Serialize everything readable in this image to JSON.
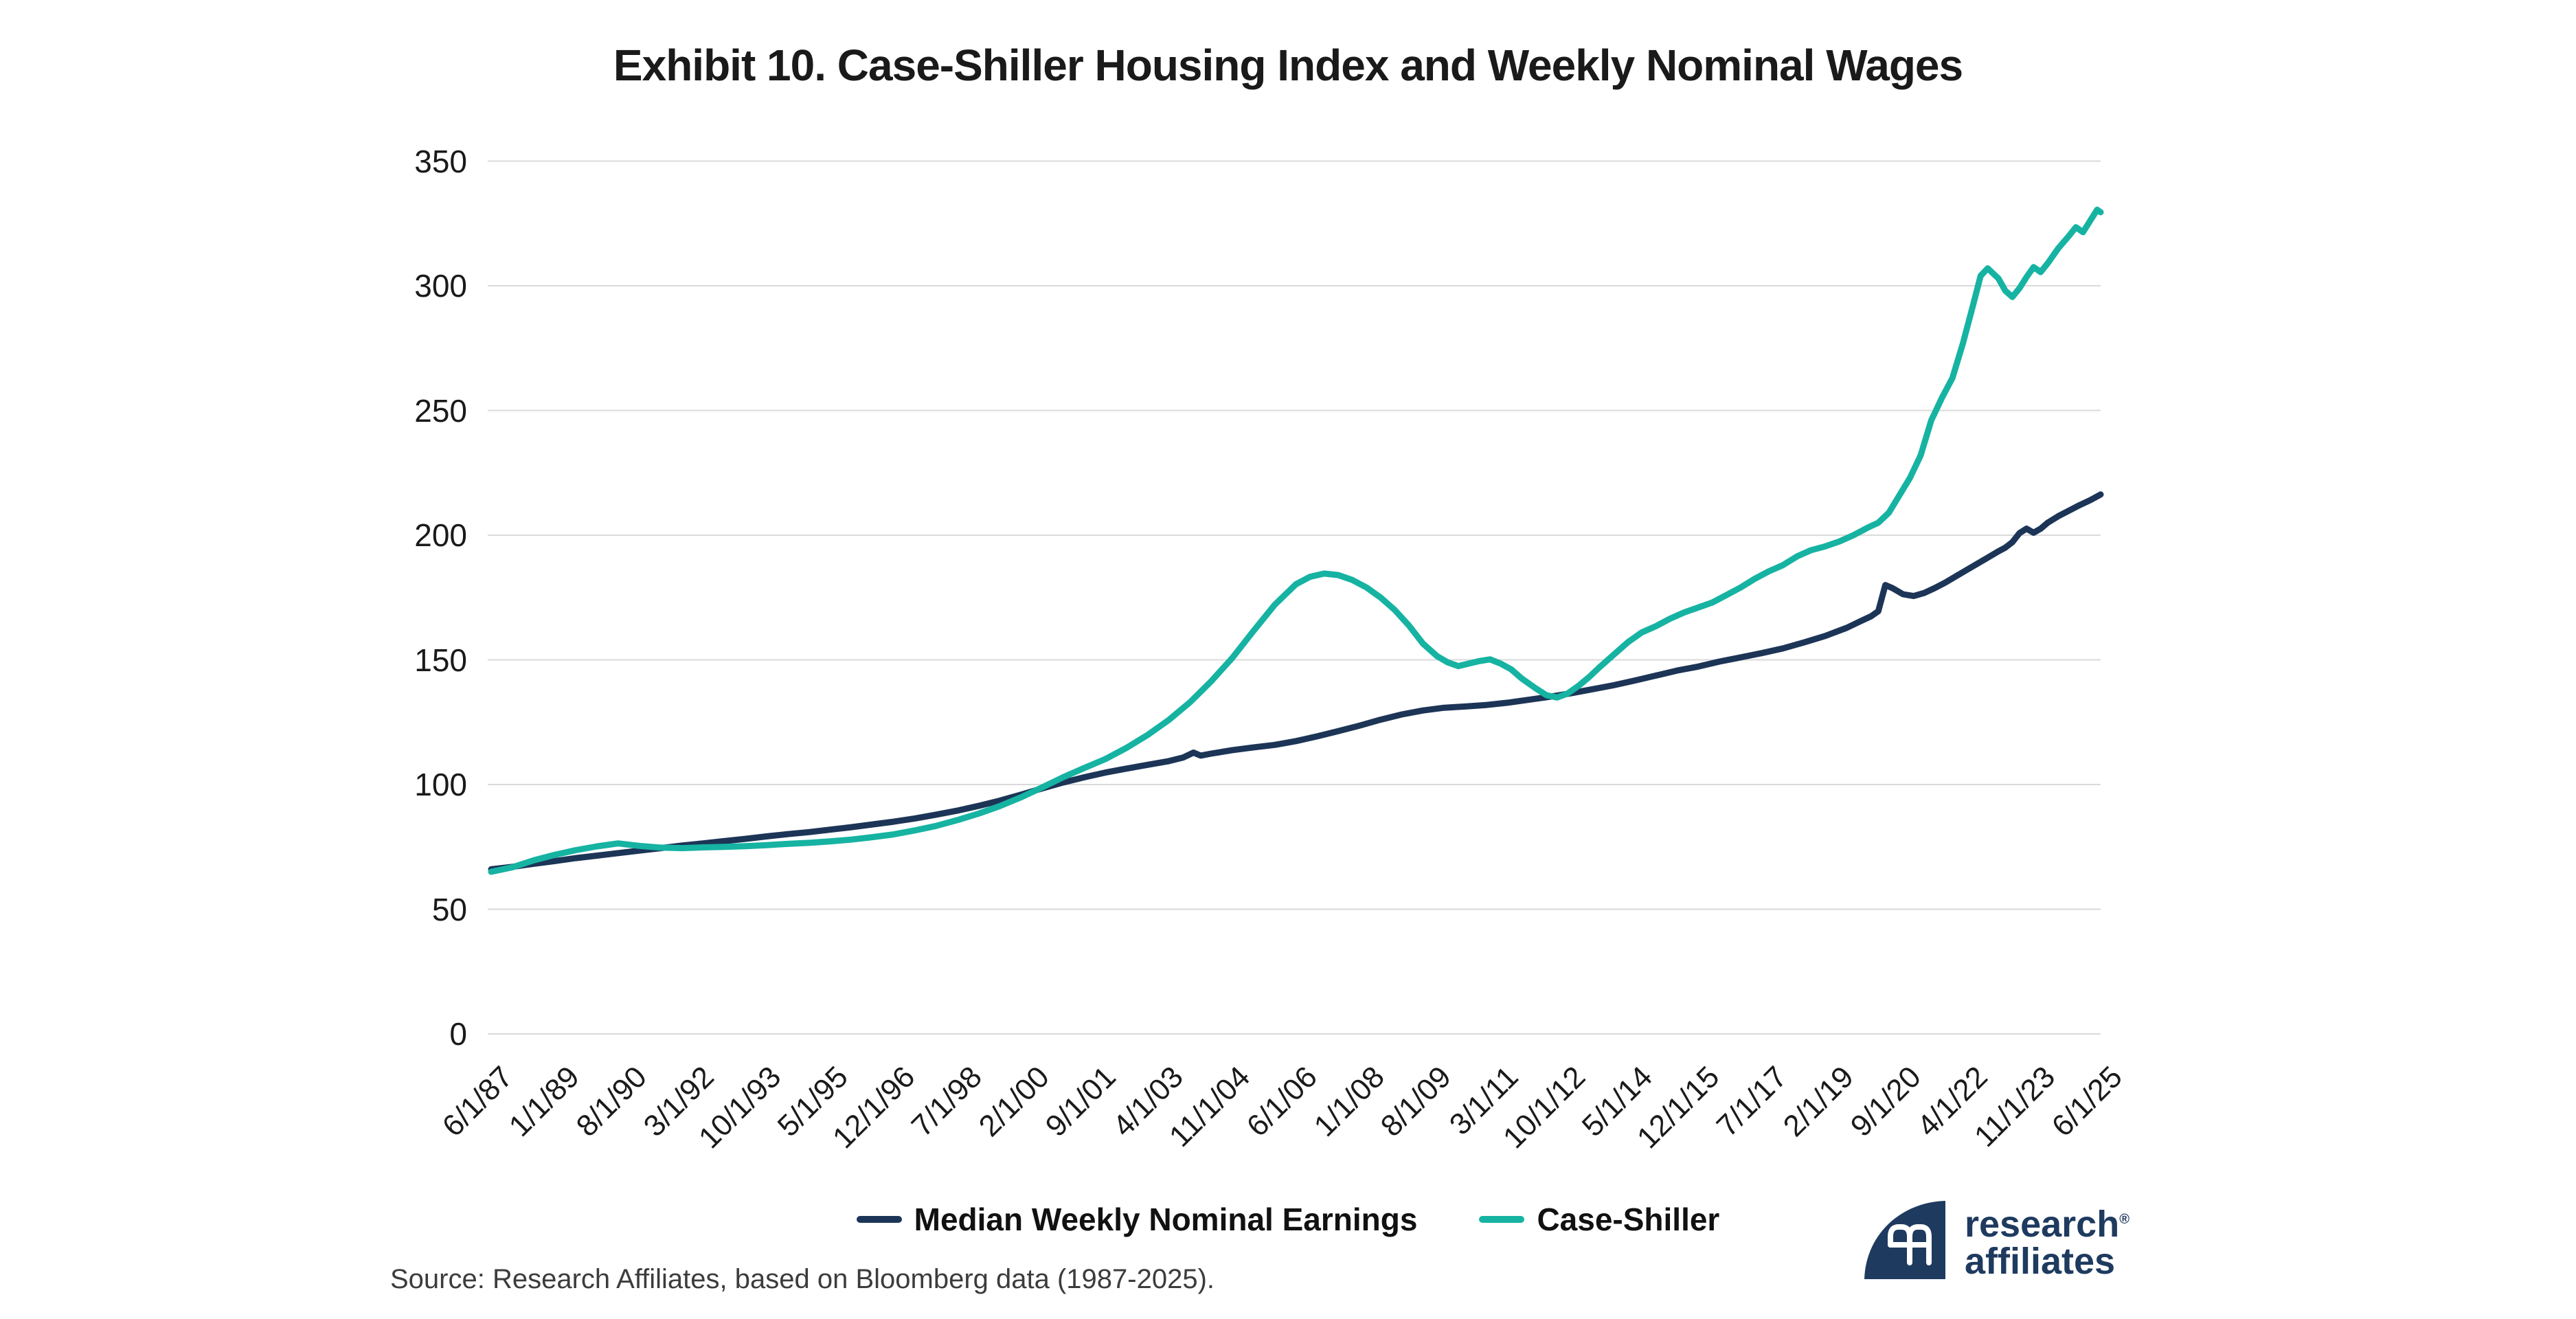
{
  "title": "Exhibit 10. Case-Shiller Housing Index and Weekly Nominal Wages",
  "source": "Source: Research Affiliates, based on Bloomberg data (1987-2025).",
  "logo": {
    "line1": "research",
    "line2": "affiliates",
    "registered": "®"
  },
  "colors": {
    "navy": "#1C3557",
    "teal": "#16B3A2",
    "grid": "#DADADA",
    "title_text": "#1A1A1A",
    "axis_text": "#1A1A1A",
    "source_text": "#3C3C3C",
    "logo_navy": "#1E3A5F",
    "background": "#FFFFFF"
  },
  "legend": [
    {
      "label": "Median Weekly Nominal Earnings",
      "color": "#1C3557"
    },
    {
      "label": "Case-Shiller",
      "color": "#16B3A2"
    }
  ],
  "chart_data": {
    "type": "line",
    "title": "Exhibit 10. Case-Shiller Housing Index and Weekly Nominal Wages",
    "xlabel": "",
    "ylabel": "",
    "x_unit": "months since 1987-06-01",
    "xlim_months": [
      0,
      456
    ],
    "ylim": [
      0,
      350
    ],
    "y_ticks": [
      0,
      50,
      100,
      150,
      200,
      250,
      300,
      350
    ],
    "grid": "horizontal",
    "legend_position": "bottom-center",
    "x_ticks": [
      {
        "month": 0,
        "label": "6/1/87"
      },
      {
        "month": 19,
        "label": "1/1/89"
      },
      {
        "month": 38,
        "label": "8/1/90"
      },
      {
        "month": 57,
        "label": "3/1/92"
      },
      {
        "month": 76,
        "label": "10/1/93"
      },
      {
        "month": 95,
        "label": "5/1/95"
      },
      {
        "month": 114,
        "label": "12/1/96"
      },
      {
        "month": 133,
        "label": "7/1/98"
      },
      {
        "month": 152,
        "label": "2/1/00"
      },
      {
        "month": 171,
        "label": "9/1/01"
      },
      {
        "month": 190,
        "label": "4/1/03"
      },
      {
        "month": 209,
        "label": "11/1/04"
      },
      {
        "month": 228,
        "label": "6/1/06"
      },
      {
        "month": 247,
        "label": "1/1/08"
      },
      {
        "month": 266,
        "label": "8/1/09"
      },
      {
        "month": 285,
        "label": "3/1/11"
      },
      {
        "month": 304,
        "label": "10/1/12"
      },
      {
        "month": 323,
        "label": "5/1/14"
      },
      {
        "month": 342,
        "label": "12/1/15"
      },
      {
        "month": 361,
        "label": "7/1/17"
      },
      {
        "month": 380,
        "label": "2/1/19"
      },
      {
        "month": 399,
        "label": "9/1/20"
      },
      {
        "month": 418,
        "label": "4/1/22"
      },
      {
        "month": 437,
        "label": "11/1/23"
      },
      {
        "month": 456,
        "label": "6/1/25"
      }
    ],
    "series": [
      {
        "name": "Median Weekly Nominal Earnings",
        "slug": "median-weekly-nominal-earnings",
        "color": "#1C3557",
        "points": [
          [
            0,
            66
          ],
          [
            6,
            67
          ],
          [
            12,
            68.2
          ],
          [
            18,
            69.3
          ],
          [
            24,
            70.5
          ],
          [
            30,
            71.5
          ],
          [
            36,
            72.5
          ],
          [
            42,
            73.5
          ],
          [
            48,
            74.5
          ],
          [
            54,
            75.5
          ],
          [
            60,
            76.4
          ],
          [
            66,
            77.3
          ],
          [
            72,
            78.2
          ],
          [
            78,
            79.2
          ],
          [
            84,
            80.1
          ],
          [
            90,
            80.9
          ],
          [
            96,
            81.9
          ],
          [
            102,
            82.9
          ],
          [
            108,
            84.0
          ],
          [
            114,
            85.1
          ],
          [
            120,
            86.4
          ],
          [
            126,
            87.9
          ],
          [
            132,
            89.5
          ],
          [
            138,
            91.4
          ],
          [
            144,
            93.5
          ],
          [
            150,
            95.9
          ],
          [
            156,
            98.4
          ],
          [
            162,
            100.8
          ],
          [
            168,
            102.9
          ],
          [
            174,
            104.8
          ],
          [
            180,
            106.4
          ],
          [
            186,
            107.9
          ],
          [
            192,
            109.4
          ],
          [
            196,
            110.8
          ],
          [
            199,
            112.8
          ],
          [
            201,
            111.6
          ],
          [
            204,
            112.4
          ],
          [
            210,
            113.8
          ],
          [
            216,
            114.9
          ],
          [
            222,
            115.9
          ],
          [
            228,
            117.4
          ],
          [
            234,
            119.3
          ],
          [
            240,
            121.4
          ],
          [
            246,
            123.6
          ],
          [
            252,
            126.0
          ],
          [
            258,
            128.1
          ],
          [
            264,
            129.7
          ],
          [
            270,
            130.8
          ],
          [
            276,
            131.3
          ],
          [
            282,
            131.9
          ],
          [
            288,
            132.8
          ],
          [
            294,
            134.0
          ],
          [
            300,
            135.2
          ],
          [
            306,
            136.6
          ],
          [
            312,
            138.2
          ],
          [
            318,
            139.8
          ],
          [
            324,
            141.7
          ],
          [
            330,
            143.7
          ],
          [
            336,
            145.7
          ],
          [
            342,
            147.3
          ],
          [
            348,
            149.3
          ],
          [
            354,
            151.0
          ],
          [
            360,
            152.7
          ],
          [
            366,
            154.6
          ],
          [
            372,
            157.0
          ],
          [
            378,
            159.6
          ],
          [
            384,
            162.8
          ],
          [
            388,
            165.5
          ],
          [
            391,
            167.5
          ],
          [
            393,
            169.5
          ],
          [
            395,
            180.0
          ],
          [
            397,
            178.8
          ],
          [
            400,
            176.3
          ],
          [
            403,
            175.6
          ],
          [
            406,
            176.8
          ],
          [
            409,
            178.8
          ],
          [
            412,
            181.0
          ],
          [
            415,
            183.5
          ],
          [
            418,
            186.0
          ],
          [
            421,
            188.5
          ],
          [
            424,
            191.0
          ],
          [
            427,
            193.5
          ],
          [
            429,
            195.0
          ],
          [
            431,
            197.2
          ],
          [
            433,
            200.8
          ],
          [
            435,
            202.6
          ],
          [
            437,
            201.0
          ],
          [
            439,
            202.6
          ],
          [
            441,
            205.0
          ],
          [
            444,
            207.6
          ],
          [
            447,
            209.8
          ],
          [
            450,
            212.0
          ],
          [
            453,
            214.0
          ],
          [
            456,
            216.3
          ]
        ]
      },
      {
        "name": "Case-Shiller",
        "slug": "case-shiller",
        "color": "#16B3A2",
        "points": [
          [
            0,
            65
          ],
          [
            6,
            66.8
          ],
          [
            12,
            69.6
          ],
          [
            18,
            71.8
          ],
          [
            24,
            73.7
          ],
          [
            30,
            75.2
          ],
          [
            36,
            76.4
          ],
          [
            42,
            75.4
          ],
          [
            48,
            74.7
          ],
          [
            54,
            74.5
          ],
          [
            60,
            74.8
          ],
          [
            66,
            75.0
          ],
          [
            72,
            75.3
          ],
          [
            78,
            75.7
          ],
          [
            84,
            76.2
          ],
          [
            90,
            76.6
          ],
          [
            96,
            77.2
          ],
          [
            102,
            77.9
          ],
          [
            108,
            78.9
          ],
          [
            114,
            80.0
          ],
          [
            120,
            81.6
          ],
          [
            126,
            83.4
          ],
          [
            132,
            85.7
          ],
          [
            138,
            88.3
          ],
          [
            144,
            91.3
          ],
          [
            150,
            94.8
          ],
          [
            156,
            98.8
          ],
          [
            162,
            102.9
          ],
          [
            168,
            106.6
          ],
          [
            174,
            110.2
          ],
          [
            180,
            114.7
          ],
          [
            186,
            119.9
          ],
          [
            192,
            125.9
          ],
          [
            198,
            133.0
          ],
          [
            204,
            141.4
          ],
          [
            210,
            150.8
          ],
          [
            216,
            161.6
          ],
          [
            222,
            172.1
          ],
          [
            228,
            180.3
          ],
          [
            232,
            183.3
          ],
          [
            236,
            184.6
          ],
          [
            240,
            184.0
          ],
          [
            244,
            182.0
          ],
          [
            248,
            179.0
          ],
          [
            252,
            175.0
          ],
          [
            256,
            170.0
          ],
          [
            260,
            163.8
          ],
          [
            264,
            156.5
          ],
          [
            268,
            151.5
          ],
          [
            271,
            149.0
          ],
          [
            274,
            147.5
          ],
          [
            277,
            148.5
          ],
          [
            280,
            149.5
          ],
          [
            283,
            150.2
          ],
          [
            286,
            148.5
          ],
          [
            289,
            146.2
          ],
          [
            292,
            142.5
          ],
          [
            296,
            138.5
          ],
          [
            299,
            135.8
          ],
          [
            302,
            134.9
          ],
          [
            305,
            136.5
          ],
          [
            308,
            139.5
          ],
          [
            311,
            143.0
          ],
          [
            314,
            147.0
          ],
          [
            318,
            152.0
          ],
          [
            322,
            157.0
          ],
          [
            326,
            161.0
          ],
          [
            330,
            163.5
          ],
          [
            334,
            166.5
          ],
          [
            338,
            169.0
          ],
          [
            342,
            171.0
          ],
          [
            346,
            173.0
          ],
          [
            350,
            176.0
          ],
          [
            354,
            179.0
          ],
          [
            358,
            182.5
          ],
          [
            362,
            185.5
          ],
          [
            366,
            188.0
          ],
          [
            370,
            191.5
          ],
          [
            374,
            194.0
          ],
          [
            378,
            195.5
          ],
          [
            382,
            197.5
          ],
          [
            386,
            200.0
          ],
          [
            390,
            203.0
          ],
          [
            393,
            205.0
          ],
          [
            396,
            209.0
          ],
          [
            399,
            216.0
          ],
          [
            402,
            223.0
          ],
          [
            405,
            232.0
          ],
          [
            408,
            246.0
          ],
          [
            411,
            255.0
          ],
          [
            414,
            263.0
          ],
          [
            417,
            277.0
          ],
          [
            420,
            293.0
          ],
          [
            422,
            304.0
          ],
          [
            424,
            307.0
          ],
          [
            427,
            303.0
          ],
          [
            429,
            298.0
          ],
          [
            431,
            295.5
          ],
          [
            433,
            299.0
          ],
          [
            435,
            303.5
          ],
          [
            437,
            307.5
          ],
          [
            439,
            305.5
          ],
          [
            441,
            309.0
          ],
          [
            444,
            315.0
          ],
          [
            447,
            320.0
          ],
          [
            449,
            323.5
          ],
          [
            451,
            321.5
          ],
          [
            453,
            326.0
          ],
          [
            455,
            330.5
          ],
          [
            456,
            329.5
          ]
        ]
      }
    ]
  }
}
